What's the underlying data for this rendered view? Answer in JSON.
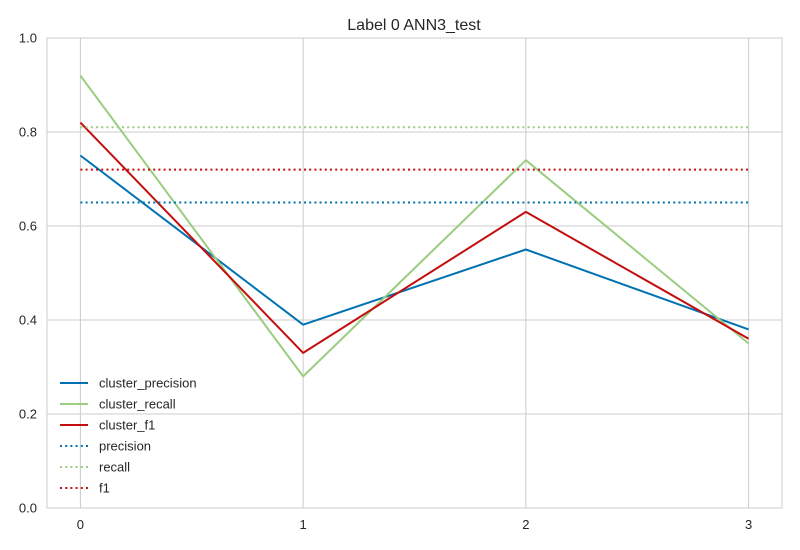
{
  "chart_data": {
    "type": "line",
    "title": "Label 0 ANN3_test",
    "xlabel": "",
    "ylabel": "",
    "x": [
      0,
      1,
      2,
      3
    ],
    "xticks": [
      "0",
      "1",
      "2",
      "3"
    ],
    "yticks": [
      "0.0",
      "0.2",
      "0.4",
      "0.6",
      "0.8",
      "1.0"
    ],
    "xlim": [
      -0.15,
      3.15
    ],
    "ylim": [
      0.0,
      1.0
    ],
    "grid": true,
    "legend_position": "lower-left",
    "series": [
      {
        "name": "cluster_precision",
        "values": [
          0.75,
          0.39,
          0.55,
          0.38
        ],
        "color": "#0072B2",
        "style": "solid"
      },
      {
        "name": "cluster_recall",
        "values": [
          0.92,
          0.28,
          0.74,
          0.35
        ],
        "color": "#9ACD80",
        "style": "solid"
      },
      {
        "name": "cluster_f1",
        "values": [
          0.82,
          0.33,
          0.63,
          0.36
        ],
        "color": "#C40E0E",
        "style": "solid"
      },
      {
        "name": "precision",
        "values": [
          0.65,
          0.65,
          0.65,
          0.65
        ],
        "color": "#0072B2",
        "style": "dotted"
      },
      {
        "name": "recall",
        "values": [
          0.81,
          0.81,
          0.81,
          0.81
        ],
        "color": "#9ACD80",
        "style": "dotted"
      },
      {
        "name": "f1",
        "values": [
          0.72,
          0.72,
          0.72,
          0.72
        ],
        "color": "#C40E0E",
        "style": "dotted"
      }
    ]
  }
}
